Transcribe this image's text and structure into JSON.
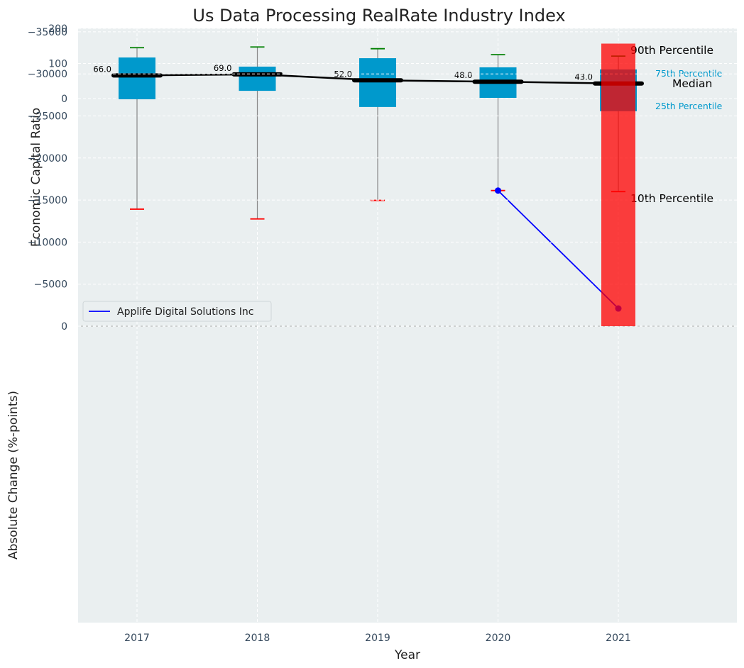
{
  "chart_data": [
    {
      "type": "box",
      "title": "Us Data Processing RealRate Industry Index",
      "ylabel": "Economic Capital Ratio",
      "ylim": [
        -650,
        200
      ],
      "yticks": [
        0,
        100,
        200
      ],
      "categories": [
        "2017",
        "2018",
        "2019",
        "2020",
        "2021"
      ],
      "boxes": [
        {
          "year": "2017",
          "p10": -315,
          "p25": -2,
          "median": 66,
          "p75": 117,
          "p90": 145,
          "median_label": "66.0"
        },
        {
          "year": "2018",
          "p10": -343,
          "p25": 22,
          "median": 69,
          "p75": 91,
          "p90": 147,
          "median_label": "69.0"
        },
        {
          "year": "2019",
          "p10": -290,
          "p25": -24,
          "median": 52,
          "p75": 115,
          "p90": 142,
          "median_label": "52.0"
        },
        {
          "year": "2020",
          "p10": -262,
          "p25": 2,
          "median": 48,
          "p75": 89,
          "p90": 125,
          "median_label": "48.0"
        },
        {
          "year": "2021",
          "p10": -265,
          "p25": -36,
          "median": 43,
          "p75": 83,
          "p90": 121,
          "median_label": "43.0"
        }
      ],
      "company_series": {
        "name": "Applife Digital Solutions Inc",
        "color": "#0000ff",
        "points": [
          {
            "year": "2020",
            "value": -262
          },
          {
            "year": "2021",
            "value": -598
          }
        ]
      },
      "annotations": {
        "p90": "90th Percentile",
        "p75": "75th Percentile",
        "median": "Median",
        "p25": "25th Percentile",
        "p10": "10th Percentile"
      },
      "legend_placement": "lower-left",
      "grid": true,
      "colors": {
        "box": "#0099cc",
        "median_line": "#000000",
        "p90_whisker": "#008000",
        "p10_whisker": "#ff0000"
      }
    },
    {
      "type": "bar",
      "xlabel": "Year",
      "ylabel": "Absolute Change (%-points)",
      "categories": [
        "2017",
        "2018",
        "2019",
        "2020",
        "2021"
      ],
      "values": [
        null,
        null,
        null,
        null,
        -33600
      ],
      "ylim": [
        -35200,
        0
      ],
      "yticks": [
        0,
        -5000,
        -10000,
        -15000,
        -20000,
        -25000,
        -30000,
        -35000
      ],
      "ytick_labels": [
        "0",
        "−5000",
        "−10000",
        "−15000",
        "−20000",
        "−25000",
        "−30000",
        "−35000"
      ],
      "grid": true,
      "colors": {
        "negative": "#ff0000"
      }
    }
  ]
}
